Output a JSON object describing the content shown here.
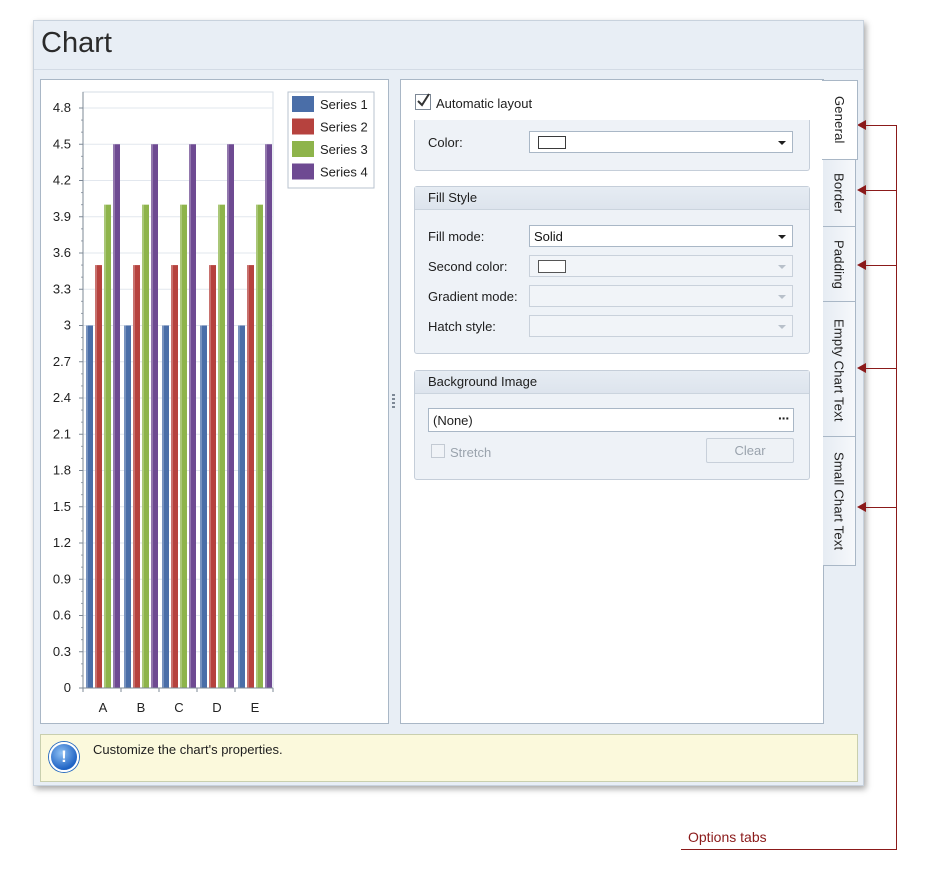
{
  "window": {
    "title": "Chart"
  },
  "chart_data": {
    "type": "bar",
    "categories": [
      "A",
      "B",
      "C",
      "D",
      "E"
    ],
    "series": [
      {
        "name": "Series 1",
        "color": "#4a6ea8",
        "values": [
          3,
          3,
          3,
          3,
          3
        ]
      },
      {
        "name": "Series 2",
        "color": "#b6423e",
        "values": [
          3.5,
          3.5,
          3.5,
          3.5,
          3.5
        ]
      },
      {
        "name": "Series 3",
        "color": "#8eb44b",
        "values": [
          4,
          4,
          4,
          4,
          4
        ]
      },
      {
        "name": "Series 4",
        "color": "#6e4a92",
        "values": [
          4.5,
          4.5,
          4.5,
          4.5,
          4.5
        ]
      }
    ],
    "ylim": [
      0,
      4.8
    ],
    "yticks": [
      "0",
      "0.3",
      "0.6",
      "0.9",
      "1.2",
      "1.5",
      "1.8",
      "2.1",
      "2.4",
      "2.7",
      "3",
      "3.3",
      "3.6",
      "3.9",
      "4.2",
      "4.5",
      "4.8"
    ],
    "ytick_values": [
      0,
      0.3,
      0.6,
      0.9,
      1.2,
      1.5,
      1.8,
      2.1,
      2.4,
      2.7,
      3,
      3.3,
      3.6,
      3.9,
      4.2,
      4.5,
      4.8
    ],
    "grid": true,
    "legend_position": "top-right"
  },
  "options": {
    "automatic_layout": {
      "label": "Automatic layout",
      "checked": true
    },
    "color": {
      "label": "Color:",
      "swatch": "#ffffff"
    },
    "fill_style": {
      "header": "Fill Style",
      "fill_mode": {
        "label": "Fill mode:",
        "value": "Solid"
      },
      "second_color": {
        "label": "Second color:"
      },
      "gradient_mode": {
        "label": "Gradient mode:"
      },
      "hatch_style": {
        "label": "Hatch style:"
      }
    },
    "background_image": {
      "header": "Background Image",
      "value": "(None)",
      "ellipsis": "···",
      "stretch_label": "Stretch",
      "clear_label": "Clear"
    }
  },
  "tabs": [
    {
      "label": "General",
      "active": true
    },
    {
      "label": "Border",
      "active": false
    },
    {
      "label": "Padding",
      "active": false
    },
    {
      "label": "Empty Chart Text",
      "active": false
    },
    {
      "label": "Small Chart Text",
      "active": false
    }
  ],
  "status": {
    "text": "Customize the chart's properties."
  },
  "annotation": {
    "label": "Options tabs",
    "color": "#8b1a1a"
  },
  "icons": {
    "info": "info-icon",
    "checkbox": "checkbox-icon",
    "dropdown": "chevron-down-icon"
  }
}
